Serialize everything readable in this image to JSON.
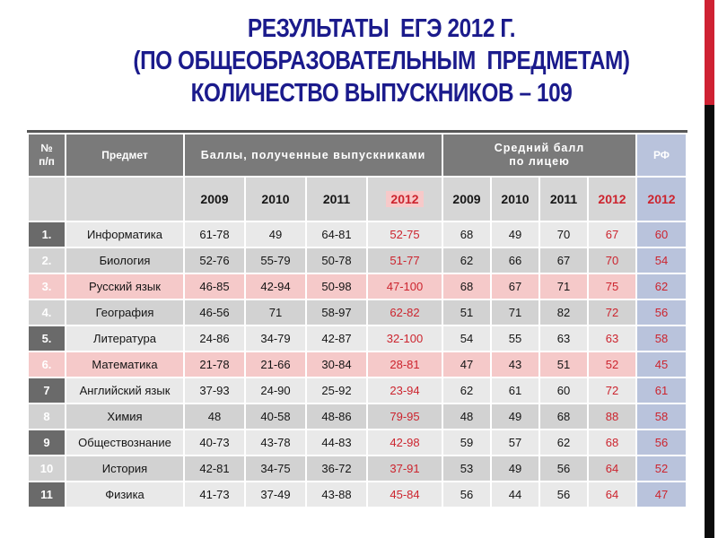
{
  "slide": {
    "title_lines": [
      "РЕЗУЛЬТАТЫ  ЕГЭ 2012 Г.",
      "(ПО ОБЩЕОБРАЗОВАТЕЛЬНЫМ  ПРЕДМЕТАМ)",
      "КОЛИЧЕСТВО ВЫПУСКНИКОВ – 109"
    ],
    "colors": {
      "title": "#1b1b8c",
      "bar_red": "#cf2233",
      "bar_black": "#0c0c0c",
      "header_gray": "#7a7a7a",
      "year_row": "#d6d6d6",
      "rf_blue": "#b9c3dc",
      "row_light": "#e9e9e9",
      "row_dark": "#d2d2d2",
      "row_pink": "#f5c9c9",
      "num_dark": "#6a6a6a",
      "red_text": "#cc242e",
      "pink_highlight": "#f7c9c9"
    }
  },
  "table": {
    "headers": {
      "num": "№\nп/п",
      "subject": "Предмет",
      "scores_group": "Баллы, полученные выпускниками",
      "avg_group": "Средний балл\nпо лицею",
      "rf": "РФ"
    },
    "years": [
      "2009",
      "2010",
      "2011",
      "2012"
    ],
    "rf_year": "2012",
    "rows": [
      {
        "num": "1.",
        "subject": "Информатика",
        "scores": [
          "61-78",
          "49",
          "64-81",
          "52-75"
        ],
        "avg": [
          "68",
          "49",
          "70",
          "67"
        ],
        "rf": "60",
        "pink": false
      },
      {
        "num": "2.",
        "subject": "Биология",
        "scores": [
          "52-76",
          "55-79",
          "50-78",
          "51-77"
        ],
        "avg": [
          "62",
          "66",
          "67",
          "70"
        ],
        "rf": "54",
        "pink": false
      },
      {
        "num": "3.",
        "subject": "Русский язык",
        "scores": [
          "46-85",
          "42-94",
          "50-98",
          "47-100"
        ],
        "avg": [
          "68",
          "67",
          "71",
          "75"
        ],
        "rf": "62",
        "pink": true
      },
      {
        "num": "4.",
        "subject": "География",
        "scores": [
          "46-56",
          "71",
          "58-97",
          "62-82"
        ],
        "avg": [
          "51",
          "71",
          "82",
          "72"
        ],
        "rf": "56",
        "pink": false
      },
      {
        "num": "5.",
        "subject": "Литература",
        "scores": [
          "24-86",
          "34-79",
          "42-87",
          "32-100"
        ],
        "avg": [
          "54",
          "55",
          "63",
          "63"
        ],
        "rf": "58",
        "pink": false
      },
      {
        "num": "6.",
        "subject": "Математика",
        "scores": [
          "21-78",
          "21-66",
          "30-84",
          "28-81"
        ],
        "avg": [
          "47",
          "43",
          "51",
          "52"
        ],
        "rf": "45",
        "pink": true
      },
      {
        "num": "7",
        "subject": "Английский язык",
        "scores": [
          "37-93",
          "24-90",
          "25-92",
          "23-94"
        ],
        "avg": [
          "62",
          "61",
          "60",
          "72"
        ],
        "rf": "61",
        "pink": false
      },
      {
        "num": "8",
        "subject": "Химия",
        "scores": [
          "48",
          "40-58",
          "48-86",
          "79-95"
        ],
        "avg": [
          "48",
          "49",
          "68",
          "88"
        ],
        "rf": "58",
        "pink": false
      },
      {
        "num": "9",
        "subject": "Обществознание",
        "scores": [
          "40-73",
          "43-78",
          "44-83",
          "42-98"
        ],
        "avg": [
          "59",
          "57",
          "62",
          "68"
        ],
        "rf": "56",
        "pink": false
      },
      {
        "num": "10",
        "subject": "История",
        "scores": [
          "42-81",
          "34-75",
          "36-72",
          "37-91"
        ],
        "avg": [
          "53",
          "49",
          "56",
          "64"
        ],
        "rf": "52",
        "pink": false
      },
      {
        "num": "11",
        "subject": "Физика",
        "scores": [
          "41-73",
          "37-49",
          "43-88",
          "45-84"
        ],
        "avg": [
          "56",
          "44",
          "56",
          "64"
        ],
        "rf": "47",
        "pink": false
      }
    ]
  }
}
